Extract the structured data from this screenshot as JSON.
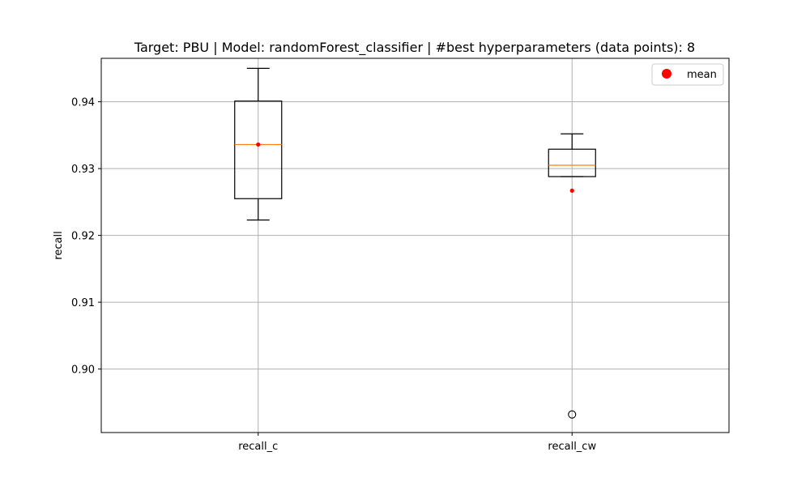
{
  "chart_data": {
    "type": "box",
    "title": "Target: PBU | Model: randomForest_classifier | #best hyperparameters (data points): 8",
    "xlabel": "",
    "ylabel": "recall",
    "ylim": [
      0.8905,
      0.9465
    ],
    "yticks": [
      "0.90",
      "0.91",
      "0.92",
      "0.93",
      "0.94"
    ],
    "yticks_values": [
      0.9,
      0.91,
      0.92,
      0.93,
      0.94
    ],
    "grid": true,
    "legend": {
      "position": "top-right",
      "entries": [
        {
          "label": "mean",
          "color": "#ff0000"
        }
      ]
    },
    "categories": [
      "recall_c",
      "recall_cw"
    ],
    "boxes": [
      {
        "name": "recall_c",
        "whisker_low": 0.9223,
        "q1": 0.9255,
        "median": 0.9336,
        "q3": 0.9401,
        "whisker_high": 0.945,
        "mean": 0.9336,
        "outliers": []
      },
      {
        "name": "recall_cw",
        "whisker_low": 0.9288,
        "q1": 0.9288,
        "median": 0.9305,
        "q3": 0.9329,
        "whisker_high": 0.9352,
        "mean": 0.9267,
        "outliers": [
          0.8932
        ]
      }
    ],
    "colors": {
      "box": "#000000",
      "median": "#ff7f0e",
      "mean": "#ff0000",
      "grid": "#b0b0b0"
    }
  }
}
